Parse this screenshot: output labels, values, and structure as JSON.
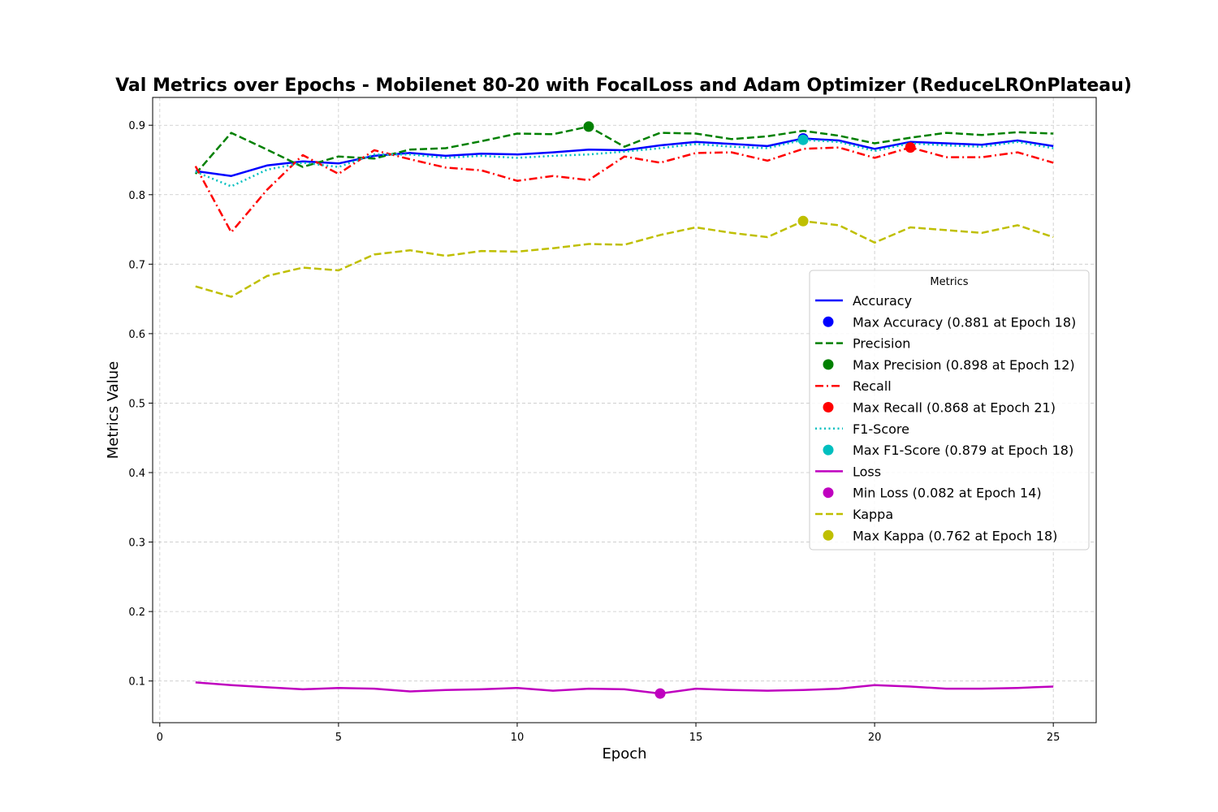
{
  "chart_data": {
    "type": "line",
    "title": "Val Metrics over Epochs - Mobilenet 80-20 with FocalLoss and Adam Optimizer (ReduceLROnPlateau)",
    "xlabel": "Epoch",
    "ylabel": "Metrics Value",
    "xlim": [
      -0.2,
      26.2
    ],
    "ylim": [
      0.04,
      0.94
    ],
    "xticks": [
      0,
      5,
      10,
      15,
      20,
      25
    ],
    "yticks": [
      0.1,
      0.2,
      0.3,
      0.4,
      0.5,
      0.6,
      0.7,
      0.8,
      0.9
    ],
    "grid": true,
    "legend_title": "Metrics",
    "legend_position": "right",
    "x": [
      1,
      2,
      3,
      4,
      5,
      6,
      7,
      8,
      9,
      10,
      11,
      12,
      13,
      14,
      15,
      16,
      17,
      18,
      19,
      20,
      21,
      22,
      23,
      24,
      25
    ],
    "series": [
      {
        "name": "Accuracy",
        "color": "#0000ff",
        "dash": "solid",
        "values": [
          0.834,
          0.827,
          0.842,
          0.848,
          0.845,
          0.856,
          0.86,
          0.856,
          0.859,
          0.858,
          0.861,
          0.865,
          0.864,
          0.871,
          0.876,
          0.873,
          0.87,
          0.881,
          0.878,
          0.866,
          0.876,
          0.874,
          0.872,
          0.878,
          0.87
        ]
      },
      {
        "name": "Precision",
        "color": "#008000",
        "dash": "dashed",
        "values": [
          0.83,
          0.889,
          0.865,
          0.84,
          0.855,
          0.852,
          0.865,
          0.867,
          0.877,
          0.888,
          0.887,
          0.898,
          0.869,
          0.889,
          0.888,
          0.88,
          0.884,
          0.892,
          0.885,
          0.874,
          0.882,
          0.889,
          0.886,
          0.89,
          0.888
        ]
      },
      {
        "name": "Recall",
        "color": "#ff0000",
        "dash": "dashdot",
        "values": [
          0.841,
          0.746,
          0.807,
          0.857,
          0.83,
          0.864,
          0.851,
          0.839,
          0.835,
          0.82,
          0.827,
          0.821,
          0.855,
          0.846,
          0.86,
          0.861,
          0.849,
          0.866,
          0.868,
          0.853,
          0.868,
          0.854,
          0.854,
          0.861,
          0.846
        ]
      },
      {
        "name": "F1-Score",
        "color": "#00bfbf",
        "dash": "dotted",
        "values": [
          0.833,
          0.812,
          0.836,
          0.846,
          0.84,
          0.858,
          0.858,
          0.853,
          0.856,
          0.853,
          0.856,
          0.858,
          0.862,
          0.867,
          0.873,
          0.869,
          0.867,
          0.879,
          0.876,
          0.863,
          0.874,
          0.871,
          0.869,
          0.876,
          0.867
        ]
      },
      {
        "name": "Loss",
        "color": "#bf00bf",
        "dash": "solid",
        "values": [
          0.098,
          0.094,
          0.091,
          0.088,
          0.09,
          0.089,
          0.085,
          0.087,
          0.088,
          0.09,
          0.086,
          0.089,
          0.088,
          0.082,
          0.089,
          0.087,
          0.086,
          0.087,
          0.089,
          0.094,
          0.092,
          0.089,
          0.089,
          0.09,
          0.092
        ]
      },
      {
        "name": "Kappa",
        "color": "#bfbf00",
        "dash": "dashed",
        "values": [
          0.668,
          0.653,
          0.683,
          0.695,
          0.691,
          0.714,
          0.72,
          0.712,
          0.719,
          0.718,
          0.723,
          0.729,
          0.728,
          0.742,
          0.753,
          0.745,
          0.739,
          0.762,
          0.756,
          0.731,
          0.753,
          0.749,
          0.745,
          0.756,
          0.739
        ]
      }
    ],
    "markers": [
      {
        "label": "Max Accuracy (0.881 at Epoch 18)",
        "x": 18,
        "y": 0.881,
        "color": "#0000ff"
      },
      {
        "label": "Max Precision (0.898 at Epoch 12)",
        "x": 12,
        "y": 0.898,
        "color": "#008000"
      },
      {
        "label": "Max Recall (0.868 at Epoch 21)",
        "x": 21,
        "y": 0.868,
        "color": "#ff0000"
      },
      {
        "label": "Max F1-Score (0.879 at Epoch 18)",
        "x": 18,
        "y": 0.879,
        "color": "#00bfbf"
      },
      {
        "label": "Min Loss (0.082 at Epoch 14)",
        "x": 14,
        "y": 0.082,
        "color": "#bf00bf"
      },
      {
        "label": "Max Kappa (0.762 at Epoch 18)",
        "x": 18,
        "y": 0.762,
        "color": "#bfbf00"
      }
    ],
    "legend_entries": [
      {
        "kind": "line",
        "series": 0
      },
      {
        "kind": "marker",
        "marker": 0
      },
      {
        "kind": "line",
        "series": 1
      },
      {
        "kind": "marker",
        "marker": 1
      },
      {
        "kind": "line",
        "series": 2
      },
      {
        "kind": "marker",
        "marker": 2
      },
      {
        "kind": "line",
        "series": 3
      },
      {
        "kind": "marker",
        "marker": 3
      },
      {
        "kind": "line",
        "series": 4
      },
      {
        "kind": "marker",
        "marker": 4
      },
      {
        "kind": "line",
        "series": 5
      },
      {
        "kind": "marker",
        "marker": 5
      }
    ]
  }
}
